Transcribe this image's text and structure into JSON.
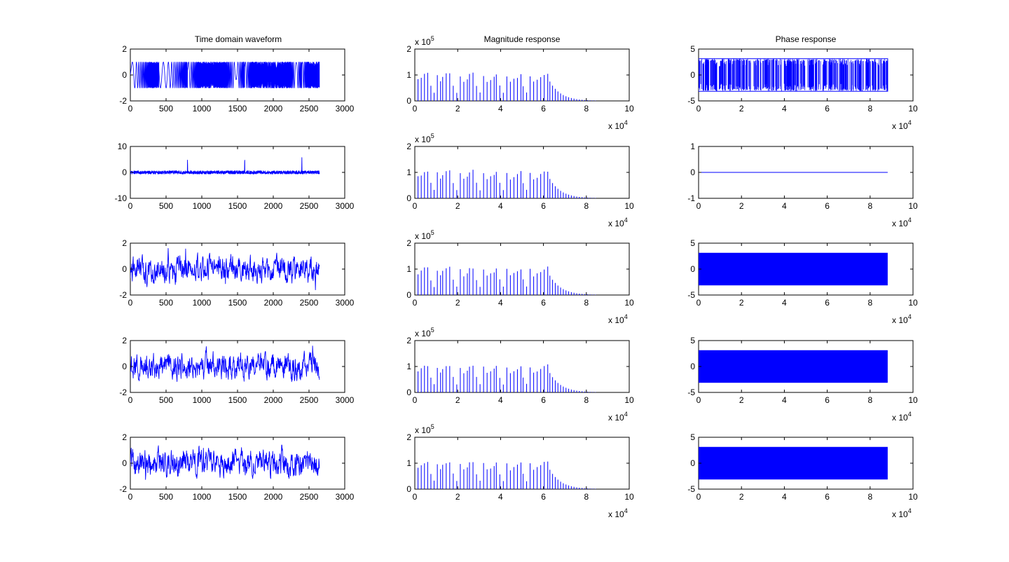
{
  "figure": {
    "background": "#ffffff",
    "line_color": "#0000ff"
  },
  "columns": [
    {
      "title": "Time domain waveform"
    },
    {
      "title": "Magnitude response"
    },
    {
      "title": "Phase response"
    }
  ],
  "chart_data": [
    {
      "row": 0,
      "col": 0,
      "type": "line",
      "title": "Time domain waveform",
      "signal": "chirp_bursts",
      "xlim": [
        0,
        3000
      ],
      "ylim": [
        -2,
        2
      ],
      "xticks": [
        0,
        500,
        1000,
        1500,
        2000,
        2500,
        3000
      ],
      "yticks": [
        -2,
        0,
        2
      ],
      "x_range": [
        0,
        2646
      ],
      "y_amplitude": 1,
      "grid": false
    },
    {
      "row": 0,
      "col": 1,
      "type": "bar",
      "title": "Magnitude response",
      "signal": "harmonic_spikes",
      "xlim": [
        0,
        100000
      ],
      "ylim": [
        0,
        200000
      ],
      "xticks": [
        0,
        20000,
        40000,
        60000,
        80000,
        100000
      ],
      "xtick_labels": [
        "0",
        "2",
        "4",
        "6",
        "8",
        "10"
      ],
      "yticks": [
        0,
        100000,
        200000
      ],
      "ytick_labels": [
        "0",
        "1",
        "2"
      ],
      "x_multiplier": "x 10",
      "x_exponent": "4",
      "y_multiplier": "x 10",
      "y_exponent": "5",
      "peak": 110000,
      "grid": false
    },
    {
      "row": 0,
      "col": 2,
      "type": "line",
      "title": "Phase response",
      "signal": "phase_sparse",
      "xlim": [
        0,
        100000
      ],
      "ylim": [
        -5,
        5
      ],
      "xticks": [
        0,
        20000,
        40000,
        60000,
        80000,
        100000
      ],
      "xtick_labels": [
        "0",
        "2",
        "4",
        "6",
        "8",
        "10"
      ],
      "yticks": [
        -5,
        0,
        5
      ],
      "x_multiplier": "x 10",
      "x_exponent": "4",
      "x_range": [
        0,
        88200
      ],
      "y_amplitude": 3.14,
      "grid": false
    },
    {
      "row": 1,
      "col": 0,
      "type": "line",
      "signal": "impulse_peaks",
      "xlim": [
        0,
        3000
      ],
      "ylim": [
        -10,
        10
      ],
      "xticks": [
        0,
        500,
        1000,
        1500,
        2000,
        2500,
        3000
      ],
      "yticks": [
        -10,
        0,
        10
      ],
      "x_range": [
        0,
        2646
      ],
      "peaks": [
        800,
        1600,
        2400
      ],
      "peak_height": 7,
      "grid": false
    },
    {
      "row": 1,
      "col": 1,
      "type": "bar",
      "signal": "harmonic_spikes",
      "xlim": [
        0,
        100000
      ],
      "ylim": [
        0,
        200000
      ],
      "xticks": [
        0,
        20000,
        40000,
        60000,
        80000,
        100000
      ],
      "xtick_labels": [
        "0",
        "2",
        "4",
        "6",
        "8",
        "10"
      ],
      "yticks": [
        0,
        100000,
        200000
      ],
      "ytick_labels": [
        "0",
        "1",
        "2"
      ],
      "x_multiplier": "x 10",
      "x_exponent": "4",
      "y_multiplier": "x 10",
      "y_exponent": "5",
      "peak": 110000,
      "grid": false
    },
    {
      "row": 1,
      "col": 2,
      "type": "line",
      "signal": "flat_zero",
      "xlim": [
        0,
        100000
      ],
      "ylim": [
        -1,
        1
      ],
      "xticks": [
        0,
        20000,
        40000,
        60000,
        80000,
        100000
      ],
      "xtick_labels": [
        "0",
        "2",
        "4",
        "6",
        "8",
        "10"
      ],
      "yticks": [
        -1,
        0,
        1
      ],
      "x_multiplier": "x 10",
      "x_exponent": "4",
      "x_range": [
        0,
        88200
      ],
      "grid": false
    },
    {
      "row": 2,
      "col": 0,
      "type": "line",
      "signal": "noise",
      "xlim": [
        0,
        3000
      ],
      "ylim": [
        -2,
        2
      ],
      "xticks": [
        0,
        500,
        1000,
        1500,
        2000,
        2500,
        3000
      ],
      "yticks": [
        -2,
        0,
        2
      ],
      "x_range": [
        0,
        2646
      ],
      "y_amplitude": 1.6,
      "grid": false
    },
    {
      "row": 2,
      "col": 1,
      "type": "bar",
      "signal": "harmonic_spikes",
      "xlim": [
        0,
        100000
      ],
      "ylim": [
        0,
        200000
      ],
      "xticks": [
        0,
        20000,
        40000,
        60000,
        80000,
        100000
      ],
      "xtick_labels": [
        "0",
        "2",
        "4",
        "6",
        "8",
        "10"
      ],
      "yticks": [
        0,
        100000,
        200000
      ],
      "ytick_labels": [
        "0",
        "1",
        "2"
      ],
      "x_multiplier": "x 10",
      "x_exponent": "4",
      "y_multiplier": "x 10",
      "y_exponent": "5",
      "peak": 110000,
      "grid": false
    },
    {
      "row": 2,
      "col": 2,
      "type": "area",
      "signal": "phase_dense",
      "xlim": [
        0,
        100000
      ],
      "ylim": [
        -5,
        5
      ],
      "xticks": [
        0,
        20000,
        40000,
        60000,
        80000,
        100000
      ],
      "xtick_labels": [
        "0",
        "2",
        "4",
        "6",
        "8",
        "10"
      ],
      "yticks": [
        -5,
        0,
        5
      ],
      "x_multiplier": "x 10",
      "x_exponent": "4",
      "x_range": [
        0,
        88200
      ],
      "y_amplitude": 3.14,
      "grid": false
    },
    {
      "row": 3,
      "col": 0,
      "type": "line",
      "signal": "noise",
      "xlim": [
        0,
        3000
      ],
      "ylim": [
        -2,
        2
      ],
      "xticks": [
        0,
        500,
        1000,
        1500,
        2000,
        2500,
        3000
      ],
      "yticks": [
        -2,
        0,
        2
      ],
      "x_range": [
        0,
        2646
      ],
      "y_amplitude": 1.6,
      "grid": false
    },
    {
      "row": 3,
      "col": 1,
      "type": "bar",
      "signal": "harmonic_spikes",
      "xlim": [
        0,
        100000
      ],
      "ylim": [
        0,
        200000
      ],
      "xticks": [
        0,
        20000,
        40000,
        60000,
        80000,
        100000
      ],
      "xtick_labels": [
        "0",
        "2",
        "4",
        "6",
        "8",
        "10"
      ],
      "yticks": [
        0,
        100000,
        200000
      ],
      "ytick_labels": [
        "0",
        "1",
        "2"
      ],
      "x_multiplier": "x 10",
      "x_exponent": "4",
      "y_multiplier": "x 10",
      "y_exponent": "5",
      "peak": 110000,
      "grid": false
    },
    {
      "row": 3,
      "col": 2,
      "type": "area",
      "signal": "phase_dense",
      "xlim": [
        0,
        100000
      ],
      "ylim": [
        -5,
        5
      ],
      "xticks": [
        0,
        20000,
        40000,
        60000,
        80000,
        100000
      ],
      "xtick_labels": [
        "0",
        "2",
        "4",
        "6",
        "8",
        "10"
      ],
      "yticks": [
        -5,
        0,
        5
      ],
      "x_multiplier": "x 10",
      "x_exponent": "4",
      "x_range": [
        0,
        88200
      ],
      "y_amplitude": 3.14,
      "grid": false
    },
    {
      "row": 4,
      "col": 0,
      "type": "line",
      "signal": "noise",
      "xlim": [
        0,
        3000
      ],
      "ylim": [
        -2,
        2
      ],
      "xticks": [
        0,
        500,
        1000,
        1500,
        2000,
        2500,
        3000
      ],
      "yticks": [
        -2,
        0,
        2
      ],
      "x_range": [
        0,
        2646
      ],
      "y_amplitude": 1.4,
      "grid": false
    },
    {
      "row": 4,
      "col": 1,
      "type": "bar",
      "signal": "harmonic_spikes",
      "xlim": [
        0,
        100000
      ],
      "ylim": [
        0,
        200000
      ],
      "xticks": [
        0,
        20000,
        40000,
        60000,
        80000,
        100000
      ],
      "xtick_labels": [
        "0",
        "2",
        "4",
        "6",
        "8",
        "10"
      ],
      "yticks": [
        0,
        100000,
        200000
      ],
      "ytick_labels": [
        "0",
        "1",
        "2"
      ],
      "x_multiplier": "x 10",
      "x_exponent": "4",
      "y_multiplier": "x 10",
      "y_exponent": "5",
      "peak": 110000,
      "grid": false
    },
    {
      "row": 4,
      "col": 2,
      "type": "area",
      "signal": "phase_dense",
      "xlim": [
        0,
        100000
      ],
      "ylim": [
        -5,
        5
      ],
      "xticks": [
        0,
        20000,
        40000,
        60000,
        80000,
        100000
      ],
      "xtick_labels": [
        "0",
        "2",
        "4",
        "6",
        "8",
        "10"
      ],
      "yticks": [
        -5,
        0,
        5
      ],
      "x_multiplier": "x 10",
      "x_exponent": "4",
      "x_range": [
        0,
        88200
      ],
      "y_amplitude": 3.14,
      "grid": false
    }
  ]
}
